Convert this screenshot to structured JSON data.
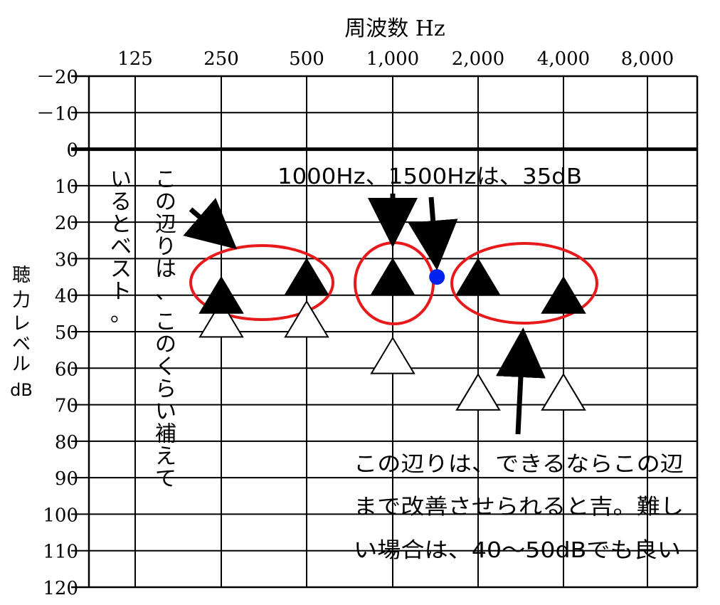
{
  "chart_data": {
    "type": "scatter",
    "title": "周波数 Hz",
    "ylabel": [
      "聴",
      "力",
      "レ",
      "ベ",
      "ル",
      "dB"
    ],
    "x_categories": [
      "125",
      "250",
      "500",
      "1,000",
      "2,000",
      "4,000",
      "8,000"
    ],
    "y_ticks": [
      "－20",
      "－10",
      "0",
      "10",
      "20",
      "30",
      "40",
      "50",
      "60",
      "70",
      "80",
      "90",
      "100",
      "110",
      "120"
    ],
    "ylim": [
      -20,
      120
    ],
    "y_inverted": true,
    "grid": true,
    "series": [
      {
        "name": "",
        "marker": "filled-triangle",
        "points": [
          {
            "x": "250",
            "y": 40
          },
          {
            "x": "500",
            "y": 35
          },
          {
            "x": "1,000",
            "y": 35
          },
          {
            "x": "2,000",
            "y": 35
          },
          {
            "x": "4,000",
            "y": 40
          }
        ]
      },
      {
        "name": "",
        "marker": "open-triangle",
        "points": [
          {
            "x": "250",
            "y": 45
          },
          {
            "x": "500",
            "y": 45
          },
          {
            "x": "1,000",
            "y": 55
          },
          {
            "x": "2,000",
            "y": 65
          },
          {
            "x": "4,000",
            "y": 65
          }
        ]
      }
    ],
    "extra_point": {
      "x_hz": 1500,
      "y": 35,
      "color": "#0022ee"
    },
    "annotations": {
      "top_label": "1000Hz、1500Hzは、35dB",
      "left_col1": "いるとベスト。",
      "left_col2_a": "この辺りは、",
      "left_col2_b": "このくらい補えて",
      "bottom_lines": [
        "この辺りは、できるならこの辺",
        "まで改善させられると吉。難し",
        "い場合は、40〜50dBでも良い"
      ]
    },
    "colors": {
      "ellipse": "#e8191b",
      "dot": "#0022ee",
      "ink": "#000000"
    }
  }
}
